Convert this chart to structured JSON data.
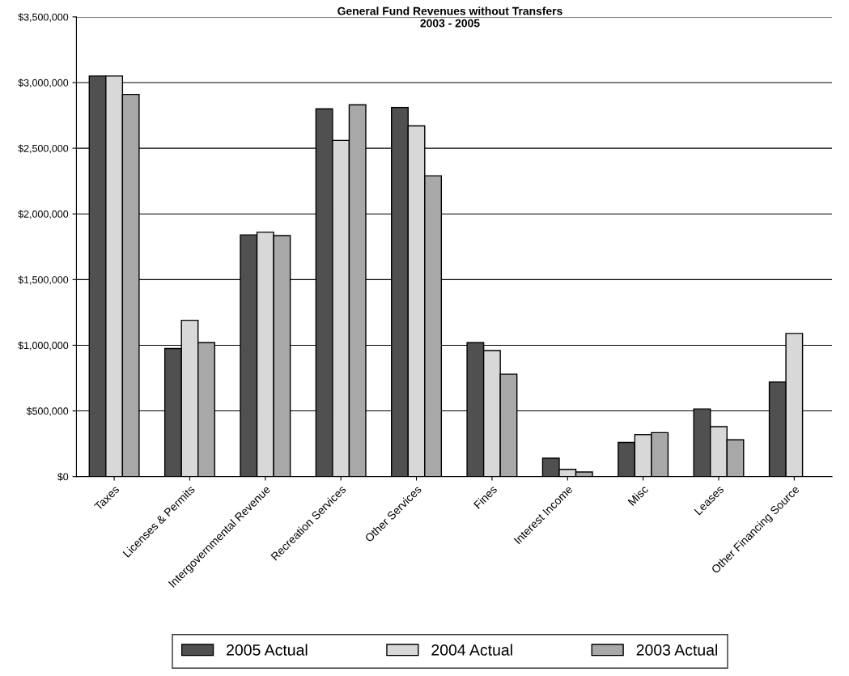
{
  "chart_data": {
    "type": "bar",
    "title": "General Fund Revenues without Transfers\n2003 - 2005",
    "categories": [
      "Taxes",
      "Licenses & Permits",
      "Intergovernmental Revenue",
      "Recreation Services",
      "Other Services",
      "Fines",
      "Interest Income",
      "Misc",
      "Leases",
      "Other Financing Source"
    ],
    "series": [
      {
        "name": "2005 Actual",
        "color": "#505050",
        "values": [
          3050000,
          975000,
          1840000,
          2800000,
          2810000,
          1020000,
          140000,
          260000,
          515000,
          720000
        ]
      },
      {
        "name": "2004 Actual",
        "color": "#d8d8d8",
        "values": [
          3050000,
          1190000,
          1860000,
          2560000,
          2670000,
          960000,
          55000,
          320000,
          380000,
          1090000
        ]
      },
      {
        "name": "2003 Actual",
        "color": "#a8a8a8",
        "values": [
          2910000,
          1020000,
          1835000,
          2830000,
          2290000,
          780000,
          35000,
          335000,
          280000,
          null
        ]
      }
    ],
    "ylim": [
      0,
      3500000
    ],
    "yticks": [
      {
        "value": 0,
        "label": "$0"
      },
      {
        "value": 500000,
        "label": "$500,000"
      },
      {
        "value": 1000000,
        "label": "$1,000,000"
      },
      {
        "value": 1500000,
        "label": "$1,500,000"
      },
      {
        "value": 2000000,
        "label": "$2,000,000"
      },
      {
        "value": 2500000,
        "label": "$2,500,000"
      },
      {
        "value": 3000000,
        "label": "$3,000,000"
      },
      {
        "value": 3500000,
        "label": "$3,500,000"
      }
    ],
    "grid": "y",
    "legend": "bottom"
  }
}
